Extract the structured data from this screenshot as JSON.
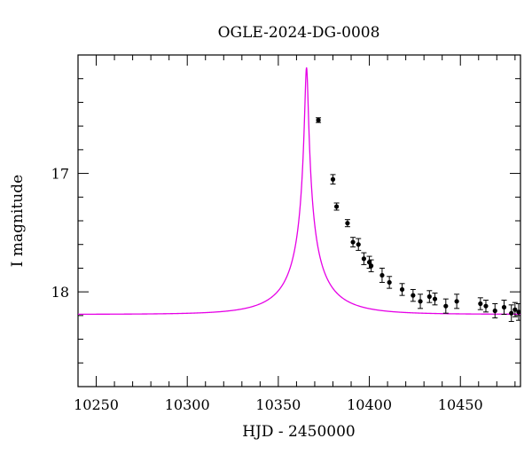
{
  "chart_data": {
    "type": "scatter",
    "title": "OGLE-2024-DG-0008",
    "xlabel": "HJD - 2450000",
    "ylabel": "I magnitude",
    "xlim": [
      10240,
      10483
    ],
    "ylim": [
      18.8,
      16.0
    ],
    "y_inverted": true,
    "x_ticks": [
      10250,
      10300,
      10350,
      10400,
      10450
    ],
    "y_ticks": [
      17,
      18
    ],
    "grid": false,
    "legend": "none",
    "model": {
      "t0": 10365.5,
      "u0": 0.03,
      "tE": 30,
      "baseline_mag": 18.19,
      "blend_fraction": 0.18,
      "color": "#e600e6"
    },
    "series": [
      {
        "color": "#000000",
        "points": [
          {
            "x": 10372,
            "y": 16.55,
            "err": 0.02
          },
          {
            "x": 10380,
            "y": 17.05,
            "err": 0.04
          },
          {
            "x": 10382,
            "y": 17.28,
            "err": 0.03
          },
          {
            "x": 10388,
            "y": 17.42,
            "err": 0.03
          },
          {
            "x": 10391,
            "y": 17.58,
            "err": 0.04
          },
          {
            "x": 10394,
            "y": 17.6,
            "err": 0.05
          },
          {
            "x": 10397,
            "y": 17.72,
            "err": 0.05
          },
          {
            "x": 10400,
            "y": 17.75,
            "err": 0.05
          },
          {
            "x": 10401,
            "y": 17.78,
            "err": 0.05
          },
          {
            "x": 10407,
            "y": 17.86,
            "err": 0.06
          },
          {
            "x": 10411,
            "y": 17.92,
            "err": 0.05
          },
          {
            "x": 10418,
            "y": 17.98,
            "err": 0.05
          },
          {
            "x": 10424,
            "y": 18.03,
            "err": 0.05
          },
          {
            "x": 10428,
            "y": 18.08,
            "err": 0.06
          },
          {
            "x": 10433,
            "y": 18.04,
            "err": 0.05
          },
          {
            "x": 10436,
            "y": 18.06,
            "err": 0.05
          },
          {
            "x": 10442,
            "y": 18.12,
            "err": 0.06
          },
          {
            "x": 10448,
            "y": 18.08,
            "err": 0.06
          },
          {
            "x": 10461,
            "y": 18.1,
            "err": 0.05
          },
          {
            "x": 10464,
            "y": 18.12,
            "err": 0.05
          },
          {
            "x": 10469,
            "y": 18.16,
            "err": 0.06
          },
          {
            "x": 10474,
            "y": 18.13,
            "err": 0.06
          },
          {
            "x": 10478,
            "y": 18.18,
            "err": 0.07
          },
          {
            "x": 10480,
            "y": 18.15,
            "err": 0.06
          },
          {
            "x": 10482,
            "y": 18.17,
            "err": 0.07
          }
        ]
      }
    ]
  }
}
